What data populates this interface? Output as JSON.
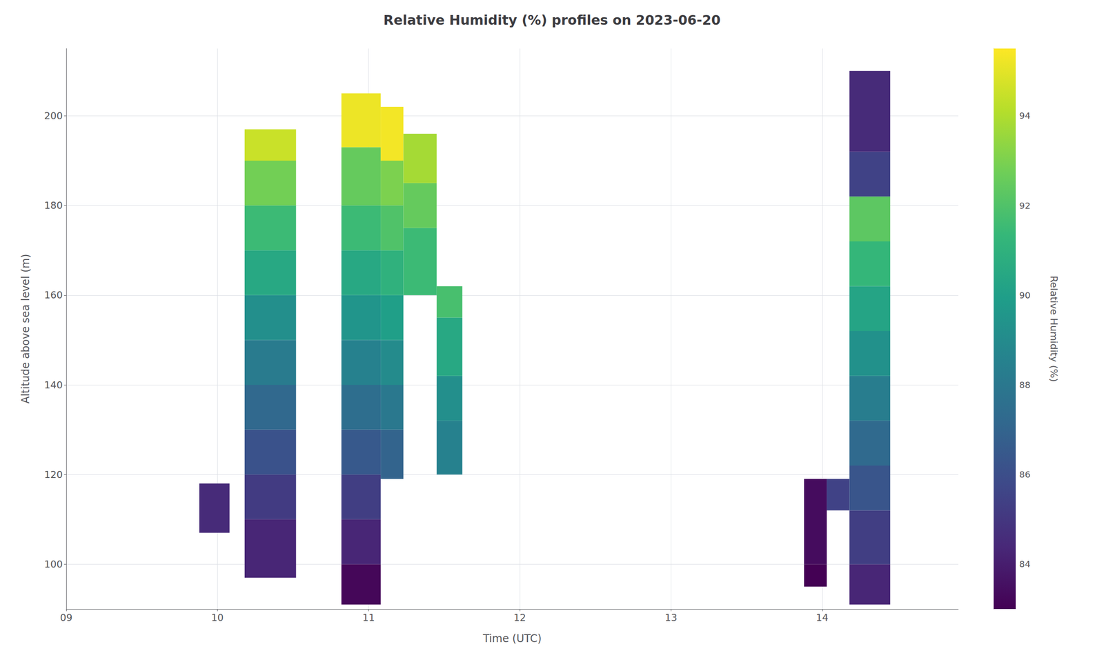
{
  "chart_data": {
    "type": "heatmap",
    "title": "Relative Humidity (%) profiles on 2023-06-20",
    "xlabel": "Time (UTC)",
    "ylabel": "Altitude above sea level (m)",
    "xlim": [
      9.0,
      14.9
    ],
    "ylim": [
      90,
      215
    ],
    "xticks": [
      {
        "value": 9,
        "label": "09"
      },
      {
        "value": 10,
        "label": "10"
      },
      {
        "value": 11,
        "label": "11"
      },
      {
        "value": 12,
        "label": "12"
      },
      {
        "value": 13,
        "label": "13"
      },
      {
        "value": 14,
        "label": "14"
      }
    ],
    "yticks": [
      100,
      120,
      140,
      160,
      180,
      200
    ],
    "grid": true,
    "colorbar": {
      "label": "Relative Humidity (%)",
      "range": [
        83,
        95.5
      ],
      "ticks": [
        84,
        86,
        88,
        90,
        92,
        94
      ],
      "colors": [
        "#440154",
        "#482878",
        "#3e4989",
        "#31688e",
        "#26828e",
        "#1f9e89",
        "#35b779",
        "#6ece58",
        "#b5de2b",
        "#fde725"
      ]
    },
    "cells": [
      {
        "t_left": 9.88,
        "t_right": 10.08,
        "alt_bottom": 107,
        "alt_top": 118,
        "rh": 84.5
      },
      {
        "t_left": 10.18,
        "t_right": 10.52,
        "alt_bottom": 97,
        "alt_top": 110,
        "rh": 84.3
      },
      {
        "t_left": 10.18,
        "t_right": 10.52,
        "alt_bottom": 110,
        "alt_top": 120,
        "rh": 85.2
      },
      {
        "t_left": 10.18,
        "t_right": 10.52,
        "alt_bottom": 120,
        "alt_top": 130,
        "rh": 86.2
      },
      {
        "t_left": 10.18,
        "t_right": 10.52,
        "alt_bottom": 130,
        "alt_top": 140,
        "rh": 87.2
      },
      {
        "t_left": 10.18,
        "t_right": 10.52,
        "alt_bottom": 140,
        "alt_top": 150,
        "rh": 88.2
      },
      {
        "t_left": 10.18,
        "t_right": 10.52,
        "alt_bottom": 150,
        "alt_top": 160,
        "rh": 89.2
      },
      {
        "t_left": 10.18,
        "t_right": 10.52,
        "alt_bottom": 160,
        "alt_top": 170,
        "rh": 90.5
      },
      {
        "t_left": 10.18,
        "t_right": 10.52,
        "alt_bottom": 170,
        "alt_top": 180,
        "rh": 91.5
      },
      {
        "t_left": 10.18,
        "t_right": 10.52,
        "alt_bottom": 180,
        "alt_top": 190,
        "rh": 92.8
      },
      {
        "t_left": 10.18,
        "t_right": 10.52,
        "alt_bottom": 190,
        "alt_top": 197,
        "rh": 94.5
      },
      {
        "t_left": 10.82,
        "t_right": 11.08,
        "alt_bottom": 91,
        "alt_top": 100,
        "rh": 83.2
      },
      {
        "t_left": 10.82,
        "t_right": 11.08,
        "alt_bottom": 100,
        "alt_top": 110,
        "rh": 84.3
      },
      {
        "t_left": 10.82,
        "t_right": 11.08,
        "alt_bottom": 110,
        "alt_top": 120,
        "rh": 85.3
      },
      {
        "t_left": 10.82,
        "t_right": 11.08,
        "alt_bottom": 120,
        "alt_top": 130,
        "rh": 86.5
      },
      {
        "t_left": 10.82,
        "t_right": 11.08,
        "alt_bottom": 130,
        "alt_top": 140,
        "rh": 87.5
      },
      {
        "t_left": 10.82,
        "t_right": 11.08,
        "alt_bottom": 140,
        "alt_top": 150,
        "rh": 88.5
      },
      {
        "t_left": 10.82,
        "t_right": 11.08,
        "alt_bottom": 150,
        "alt_top": 160,
        "rh": 89.5
      },
      {
        "t_left": 10.82,
        "t_right": 11.08,
        "alt_bottom": 160,
        "alt_top": 170,
        "rh": 90.5
      },
      {
        "t_left": 10.82,
        "t_right": 11.08,
        "alt_bottom": 170,
        "alt_top": 180,
        "rh": 91.5
      },
      {
        "t_left": 10.82,
        "t_right": 11.08,
        "alt_bottom": 180,
        "alt_top": 193,
        "rh": 92.5
      },
      {
        "t_left": 10.82,
        "t_right": 11.08,
        "alt_bottom": 193,
        "alt_top": 205,
        "rh": 95.2
      },
      {
        "t_left": 11.08,
        "t_right": 11.23,
        "alt_bottom": 119,
        "alt_top": 130,
        "rh": 87.0
      },
      {
        "t_left": 11.08,
        "t_right": 11.23,
        "alt_bottom": 130,
        "alt_top": 140,
        "rh": 88.0
      },
      {
        "t_left": 11.08,
        "t_right": 11.23,
        "alt_bottom": 140,
        "alt_top": 150,
        "rh": 89.0
      },
      {
        "t_left": 11.08,
        "t_right": 11.23,
        "alt_bottom": 150,
        "alt_top": 160,
        "rh": 90.0
      },
      {
        "t_left": 11.08,
        "t_right": 11.23,
        "alt_bottom": 160,
        "alt_top": 170,
        "rh": 91.0
      },
      {
        "t_left": 11.08,
        "t_right": 11.23,
        "alt_bottom": 170,
        "alt_top": 180,
        "rh": 92.0
      },
      {
        "t_left": 11.08,
        "t_right": 11.23,
        "alt_bottom": 180,
        "alt_top": 190,
        "rh": 93.0
      },
      {
        "t_left": 11.08,
        "t_right": 11.23,
        "alt_bottom": 190,
        "alt_top": 202,
        "rh": 95.3
      },
      {
        "t_left": 11.23,
        "t_right": 11.45,
        "alt_bottom": 160,
        "alt_top": 175,
        "rh": 91.5
      },
      {
        "t_left": 11.23,
        "t_right": 11.45,
        "alt_bottom": 175,
        "alt_top": 185,
        "rh": 92.5
      },
      {
        "t_left": 11.23,
        "t_right": 11.45,
        "alt_bottom": 185,
        "alt_top": 196,
        "rh": 93.8
      },
      {
        "t_left": 11.45,
        "t_right": 11.62,
        "alt_bottom": 120,
        "alt_top": 132,
        "rh": 88.5
      },
      {
        "t_left": 11.45,
        "t_right": 11.62,
        "alt_bottom": 132,
        "alt_top": 142,
        "rh": 89.2
      },
      {
        "t_left": 11.45,
        "t_right": 11.62,
        "alt_bottom": 142,
        "alt_top": 155,
        "rh": 90.5
      },
      {
        "t_left": 11.45,
        "t_right": 11.62,
        "alt_bottom": 155,
        "alt_top": 162,
        "rh": 91.8
      },
      {
        "t_left": 13.88,
        "t_right": 14.03,
        "alt_bottom": 95,
        "alt_top": 100,
        "rh": 83.0
      },
      {
        "t_left": 13.88,
        "t_right": 14.03,
        "alt_bottom": 100,
        "alt_top": 119,
        "rh": 83.4
      },
      {
        "t_left": 14.03,
        "t_right": 14.18,
        "alt_bottom": 112,
        "alt_top": 119,
        "rh": 85.5
      },
      {
        "t_left": 14.18,
        "t_right": 14.45,
        "alt_bottom": 91,
        "alt_top": 100,
        "rh": 84.3
      },
      {
        "t_left": 14.18,
        "t_right": 14.45,
        "alt_bottom": 100,
        "alt_top": 112,
        "rh": 85.3
      },
      {
        "t_left": 14.18,
        "t_right": 14.45,
        "alt_bottom": 112,
        "alt_top": 122,
        "rh": 86.3
      },
      {
        "t_left": 14.18,
        "t_right": 14.45,
        "alt_bottom": 122,
        "alt_top": 132,
        "rh": 87.3
      },
      {
        "t_left": 14.18,
        "t_right": 14.45,
        "alt_bottom": 132,
        "alt_top": 142,
        "rh": 88.3
      },
      {
        "t_left": 14.18,
        "t_right": 14.45,
        "alt_bottom": 142,
        "alt_top": 152,
        "rh": 89.3
      },
      {
        "t_left": 14.18,
        "t_right": 14.45,
        "alt_bottom": 152,
        "alt_top": 162,
        "rh": 90.3
      },
      {
        "t_left": 14.18,
        "t_right": 14.45,
        "alt_bottom": 162,
        "alt_top": 172,
        "rh": 91.3
      },
      {
        "t_left": 14.18,
        "t_right": 14.45,
        "alt_bottom": 172,
        "alt_top": 182,
        "rh": 92.3
      },
      {
        "t_left": 14.18,
        "t_right": 14.45,
        "alt_bottom": 182,
        "alt_top": 192,
        "rh": 85.5
      },
      {
        "t_left": 14.18,
        "t_right": 14.45,
        "alt_bottom": 192,
        "alt_top": 210,
        "rh": 84.5
      }
    ]
  }
}
